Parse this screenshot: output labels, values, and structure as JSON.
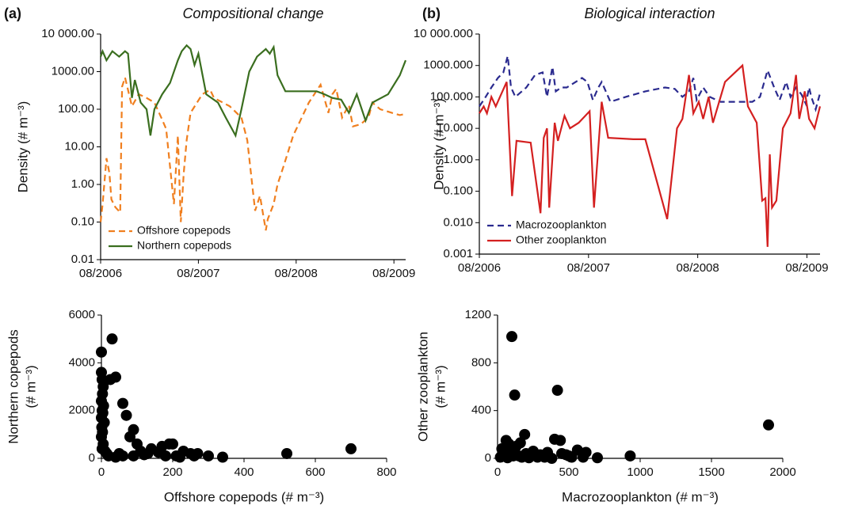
{
  "chart_data": [
    {
      "type": "line",
      "panel_label": "(a)",
      "title": "Compositional change",
      "ylabel": "Density (# m⁻³)",
      "log_y": true,
      "legend": "lower left",
      "xlim": [
        2006.58,
        2009.7
      ],
      "xticks": [
        {
          "value": 2006.58,
          "label": "08/2006"
        },
        {
          "value": 2007.58,
          "label": "08/2007"
        },
        {
          "value": 2008.58,
          "label": "08/2008"
        },
        {
          "value": 2009.58,
          "label": "08/2009"
        }
      ],
      "ylim": [
        0.01,
        10000
      ],
      "yticks": [
        {
          "value": 10000,
          "label": "10 000.00"
        },
        {
          "value": 1000,
          "label": "1000.00"
        },
        {
          "value": 100,
          "label": "100.00"
        },
        {
          "value": 10,
          "label": "10.00"
        },
        {
          "value": 1,
          "label": "1.00"
        },
        {
          "value": 0.1,
          "label": "0.10"
        },
        {
          "value": 0.01,
          "label": "0.01"
        }
      ],
      "series": [
        {
          "name": "Offshore copepods",
          "color": "#f07f1f",
          "dashed": true,
          "x": [
            2006.58,
            2006.6,
            2006.64,
            2006.67,
            2006.69,
            2006.73,
            2006.78,
            2006.8,
            2006.83,
            2006.9,
            2006.97,
            2007.05,
            2007.13,
            2007.2,
            2007.25,
            2007.33,
            2007.37,
            2007.4,
            2007.43,
            2007.46,
            2007.5,
            2007.62,
            2007.7,
            2007.74,
            2007.9,
            2008.02,
            2008.08,
            2008.13,
            2008.16,
            2008.21,
            2008.27,
            2008.29,
            2008.35,
            2008.39,
            2008.45,
            2008.55,
            2008.71,
            2008.83,
            2008.91,
            2008.95,
            2008.99,
            2009.05,
            2009.12,
            2009.16,
            2009.24,
            2009.32,
            2009.36,
            2009.44,
            2009.56,
            2009.64,
            2009.7
          ],
          "values": [
            0.1,
            0.3,
            5,
            2,
            0.4,
            0.25,
            0.18,
            400,
            700,
            120,
            250,
            200,
            150,
            60,
            30,
            0.3,
            20,
            0.1,
            2,
            15,
            80,
            250,
            330,
            200,
            120,
            60,
            15,
            1,
            0.2,
            0.5,
            0.06,
            0.12,
            0.3,
            1,
            3,
            20,
            150,
            450,
            80,
            250,
            350,
            60,
            130,
            35,
            40,
            60,
            150,
            100,
            80,
            70,
            75
          ]
        },
        {
          "name": "Northern copepods",
          "color": "#3a6e1f",
          "dashed": false,
          "x": [
            2006.58,
            2006.6,
            2006.64,
            2006.7,
            2006.77,
            2006.83,
            2006.86,
            2006.9,
            2006.93,
            2006.99,
            2007.05,
            2007.09,
            2007.13,
            2007.21,
            2007.29,
            2007.37,
            2007.41,
            2007.46,
            2007.5,
            2007.54,
            2007.58,
            2007.66,
            2007.78,
            2007.86,
            2007.96,
            2008.02,
            2008.1,
            2008.18,
            2008.27,
            2008.31,
            2008.35,
            2008.39,
            2008.47,
            2008.79,
            2008.87,
            2008.95,
            2009.04,
            2009.12,
            2009.2,
            2009.29,
            2009.36,
            2009.52,
            2009.64,
            2009.7
          ],
          "values": [
            2500,
            3500,
            2000,
            3500,
            2500,
            3500,
            3000,
            200,
            600,
            150,
            100,
            20,
            100,
            250,
            500,
            2000,
            3500,
            5000,
            4000,
            1500,
            3000,
            250,
            150,
            60,
            20,
            100,
            1000,
            2500,
            4000,
            3000,
            4500,
            800,
            300,
            300,
            250,
            200,
            180,
            80,
            250,
            50,
            150,
            250,
            800,
            2000
          ]
        }
      ]
    },
    {
      "type": "line",
      "panel_label": "(b)",
      "title": "Biological interaction",
      "ylabel": "Density (# m⁻³)",
      "log_y": true,
      "legend": "lower left",
      "xlim": [
        2006.58,
        2009.7
      ],
      "xticks": [
        {
          "value": 2006.58,
          "label": "08/2006"
        },
        {
          "value": 2007.58,
          "label": "08/2007"
        },
        {
          "value": 2008.58,
          "label": "08/2008"
        },
        {
          "value": 2009.58,
          "label": "08/2009"
        }
      ],
      "ylim": [
        0.001,
        10000
      ],
      "yticks": [
        {
          "value": 10000,
          "label": "10 000.000"
        },
        {
          "value": 1000,
          "label": "1000.000"
        },
        {
          "value": 100,
          "label": "100.000"
        },
        {
          "value": 10,
          "label": "10.000"
        },
        {
          "value": 1,
          "label": "1.000"
        },
        {
          "value": 0.1,
          "label": "0.100"
        },
        {
          "value": 0.01,
          "label": "0.010"
        },
        {
          "value": 0.001,
          "label": "0.001"
        }
      ],
      "series": [
        {
          "name": "Macrozooplankton",
          "color": "#2b2b8f",
          "dashed": true,
          "x": [
            2006.58,
            2006.63,
            2006.69,
            2006.75,
            2006.8,
            2006.84,
            2006.87,
            2006.91,
            2007.01,
            2007.09,
            2007.16,
            2007.2,
            2007.25,
            2007.28,
            2007.33,
            2007.38,
            2007.52,
            2007.57,
            2007.62,
            2007.67,
            2007.7,
            2007.78,
            2007.92,
            2008.1,
            2008.28,
            2008.37,
            2008.44,
            2008.5,
            2008.54,
            2008.57,
            2008.63,
            2008.69,
            2008.79,
            2009.08,
            2009.15,
            2009.22,
            2009.28,
            2009.33,
            2009.39,
            2009.43,
            2009.48,
            2009.53,
            2009.57,
            2009.6,
            2009.62,
            2009.66,
            2009.7
          ],
          "values": [
            50,
            90,
            200,
            400,
            600,
            2000,
            200,
            100,
            200,
            500,
            600,
            100,
            900,
            150,
            200,
            200,
            400,
            300,
            80,
            200,
            300,
            70,
            100,
            150,
            200,
            180,
            100,
            150,
            400,
            80,
            200,
            100,
            70,
            70,
            100,
            700,
            200,
            80,
            300,
            100,
            200,
            120,
            60,
            200,
            100,
            40,
            130
          ]
        },
        {
          "name": "Other zooplankton",
          "color": "#d42020",
          "dashed": false,
          "x": [
            2006.58,
            2006.62,
            2006.65,
            2006.69,
            2006.73,
            2006.83,
            2006.88,
            2006.92,
            2007.05,
            2007.14,
            2007.17,
            2007.2,
            2007.22,
            2007.27,
            2007.3,
            2007.36,
            2007.41,
            2007.49,
            2007.59,
            2007.63,
            2007.7,
            2007.76,
            2007.99,
            2008.1,
            2008.3,
            2008.39,
            2008.44,
            2008.5,
            2008.54,
            2008.59,
            2008.63,
            2008.68,
            2008.72,
            2008.83,
            2008.99,
            2009.04,
            2009.12,
            2009.17,
            2009.2,
            2009.22,
            2009.24,
            2009.26,
            2009.3,
            2009.36,
            2009.43,
            2009.48,
            2009.51,
            2009.56,
            2009.6,
            2009.65,
            2009.7
          ],
          "values": [
            30,
            50,
            30,
            100,
            50,
            300,
            0.07,
            4,
            3.5,
            0.02,
            5,
            10,
            0.03,
            15,
            4,
            25,
            10,
            15,
            35,
            0.03,
            70,
            5,
            4.5,
            4.5,
            0.013,
            10,
            20,
            500,
            30,
            70,
            20,
            100,
            15,
            300,
            1000,
            50,
            15,
            0.05,
            0.06,
            0.0017,
            1.5,
            0.03,
            0.05,
            10,
            30,
            500,
            20,
            150,
            20,
            10,
            50
          ]
        }
      ]
    },
    {
      "type": "scatter",
      "ylabel": [
        "Northern copepods",
        "(# m⁻³)"
      ],
      "xlabel": "Offshore copepods (# m⁻³)",
      "color": "#000000",
      "xlim": [
        0,
        800
      ],
      "xticks": [
        0,
        200,
        400,
        600,
        800
      ],
      "ylim": [
        0,
        6000
      ],
      "yticks": [
        0,
        2000,
        4000,
        6000
      ],
      "x": [
        0,
        0,
        2,
        5,
        3,
        0,
        6,
        2,
        4,
        0,
        8,
        1,
        3,
        0,
        5,
        2,
        10,
        15,
        20,
        30,
        40,
        25,
        60,
        70,
        90,
        80,
        100,
        110,
        140,
        170,
        190,
        200,
        230,
        250,
        270,
        300,
        340,
        520,
        700,
        60,
        120,
        160,
        210,
        50,
        40,
        90,
        130,
        180,
        220,
        260
      ],
      "values": [
        4450,
        3600,
        3300,
        3000,
        2700,
        2400,
        2200,
        2000,
        1900,
        1700,
        1500,
        1300,
        1100,
        900,
        600,
        400,
        300,
        200,
        100,
        5000,
        3400,
        3300,
        2300,
        1800,
        1200,
        900,
        600,
        300,
        400,
        500,
        600,
        600,
        300,
        200,
        200,
        100,
        50,
        200,
        400,
        100,
        150,
        250,
        100,
        200,
        50,
        100,
        200,
        100,
        50,
        100
      ]
    },
    {
      "type": "scatter",
      "ylabel": [
        "Other zooplankton",
        "(# m⁻³)"
      ],
      "xlabel": "Macrozooplankton (# m⁻³)",
      "color": "#000000",
      "xlim": [
        0,
        2000
      ],
      "xticks": [
        0,
        500,
        1000,
        1500,
        2000
      ],
      "ylim": [
        0,
        1200
      ],
      "yticks": [
        0,
        400,
        800,
        1200
      ],
      "x": [
        100,
        120,
        420,
        1900,
        400,
        440,
        190,
        160,
        60,
        80,
        30,
        50,
        100,
        150,
        200,
        250,
        280,
        300,
        350,
        480,
        500,
        560,
        620,
        700,
        930,
        20,
        70,
        110,
        130,
        170,
        220,
        330,
        380,
        450,
        520,
        600
      ],
      "values": [
        1020,
        530,
        570,
        280,
        160,
        150,
        200,
        130,
        150,
        120,
        80,
        40,
        60,
        20,
        40,
        60,
        10,
        30,
        50,
        30,
        20,
        70,
        50,
        5,
        20,
        10,
        5,
        20,
        100,
        10,
        5,
        10,
        0,
        40,
        10,
        10
      ]
    }
  ]
}
